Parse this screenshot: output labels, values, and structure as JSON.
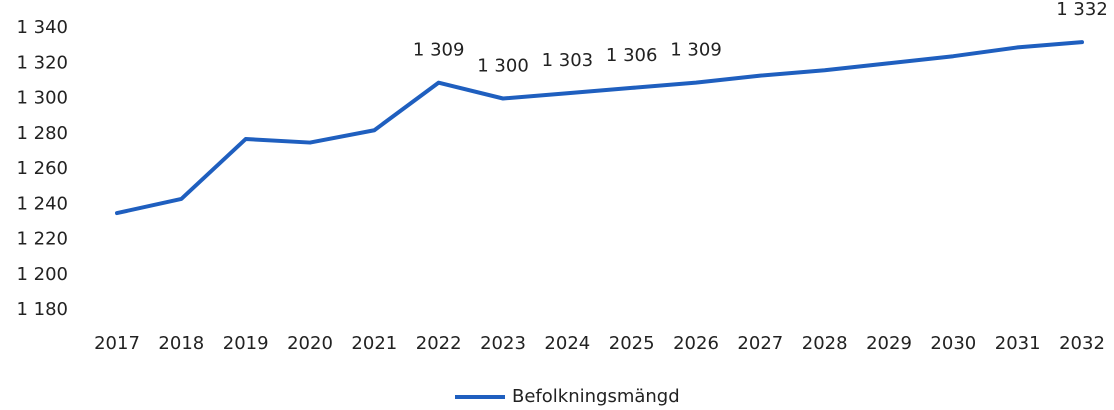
{
  "chart_data": {
    "type": "line",
    "x": [
      "2017",
      "2018",
      "2019",
      "2020",
      "2021",
      "2022",
      "2023",
      "2024",
      "2025",
      "2026",
      "2027",
      "2028",
      "2029",
      "2030",
      "2031",
      "2032"
    ],
    "series": [
      {
        "name": "Befolkningsmängd",
        "color": "#1f5fbf",
        "values": [
          1235,
          1243,
          1277,
          1275,
          1282,
          1309,
          1300,
          1303,
          1306,
          1309,
          1313,
          1316,
          1320,
          1324,
          1329,
          1332
        ],
        "value_labels": [
          null,
          null,
          null,
          null,
          null,
          "1 309",
          "1 300",
          "1 303",
          "1 306",
          "1 309",
          null,
          null,
          null,
          null,
          null,
          "1 332"
        ]
      }
    ],
    "ylim": [
      1180,
      1340
    ],
    "yticks": [
      {
        "value": 1180,
        "label": "1 180"
      },
      {
        "value": 1200,
        "label": "1 200"
      },
      {
        "value": 1220,
        "label": "1 220"
      },
      {
        "value": 1240,
        "label": "1 240"
      },
      {
        "value": 1260,
        "label": "1 260"
      },
      {
        "value": 1280,
        "label": "1 280"
      },
      {
        "value": 1300,
        "label": "1 300"
      },
      {
        "value": 1320,
        "label": "1 320"
      },
      {
        "value": 1340,
        "label": "1 340"
      }
    ],
    "grid": false,
    "legend": "bottom"
  }
}
